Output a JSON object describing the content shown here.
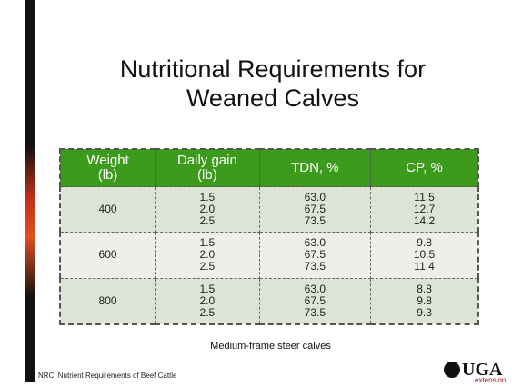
{
  "slide": {
    "title": [
      "Nutritional Requirements for",
      "Weaned Calves"
    ],
    "table": {
      "header": [
        [
          "Weight",
          "(lb)"
        ],
        [
          "Daily gain",
          "(lb)"
        ],
        [
          "TDN, %"
        ],
        [
          "CP, %"
        ]
      ],
      "rows": [
        {
          "weight": "400",
          "gain": [
            "1.5",
            "2.0",
            "2.5"
          ],
          "tdn": [
            "63.0",
            "67.5",
            "73.5"
          ],
          "cp": [
            "11.5",
            "12.7",
            "14.2"
          ]
        },
        {
          "weight": "600",
          "gain": [
            "1.5",
            "2.0",
            "2.5"
          ],
          "tdn": [
            "63.0",
            "67.5",
            "73.5"
          ],
          "cp": [
            "9.8",
            "10.5",
            "11.4"
          ]
        },
        {
          "weight": "800",
          "gain": [
            "1.5",
            "2.0",
            "2.5"
          ],
          "tdn": [
            "63.0",
            "67.5",
            "73.5"
          ],
          "cp": [
            "8.8",
            "9.8",
            "9.3"
          ]
        }
      ]
    },
    "caption": "Medium-frame steer calves",
    "footer": "NRC, Nutrient Requirements of Beef Cattle",
    "logo": {
      "name": "UGA",
      "sub": "extension"
    }
  }
}
